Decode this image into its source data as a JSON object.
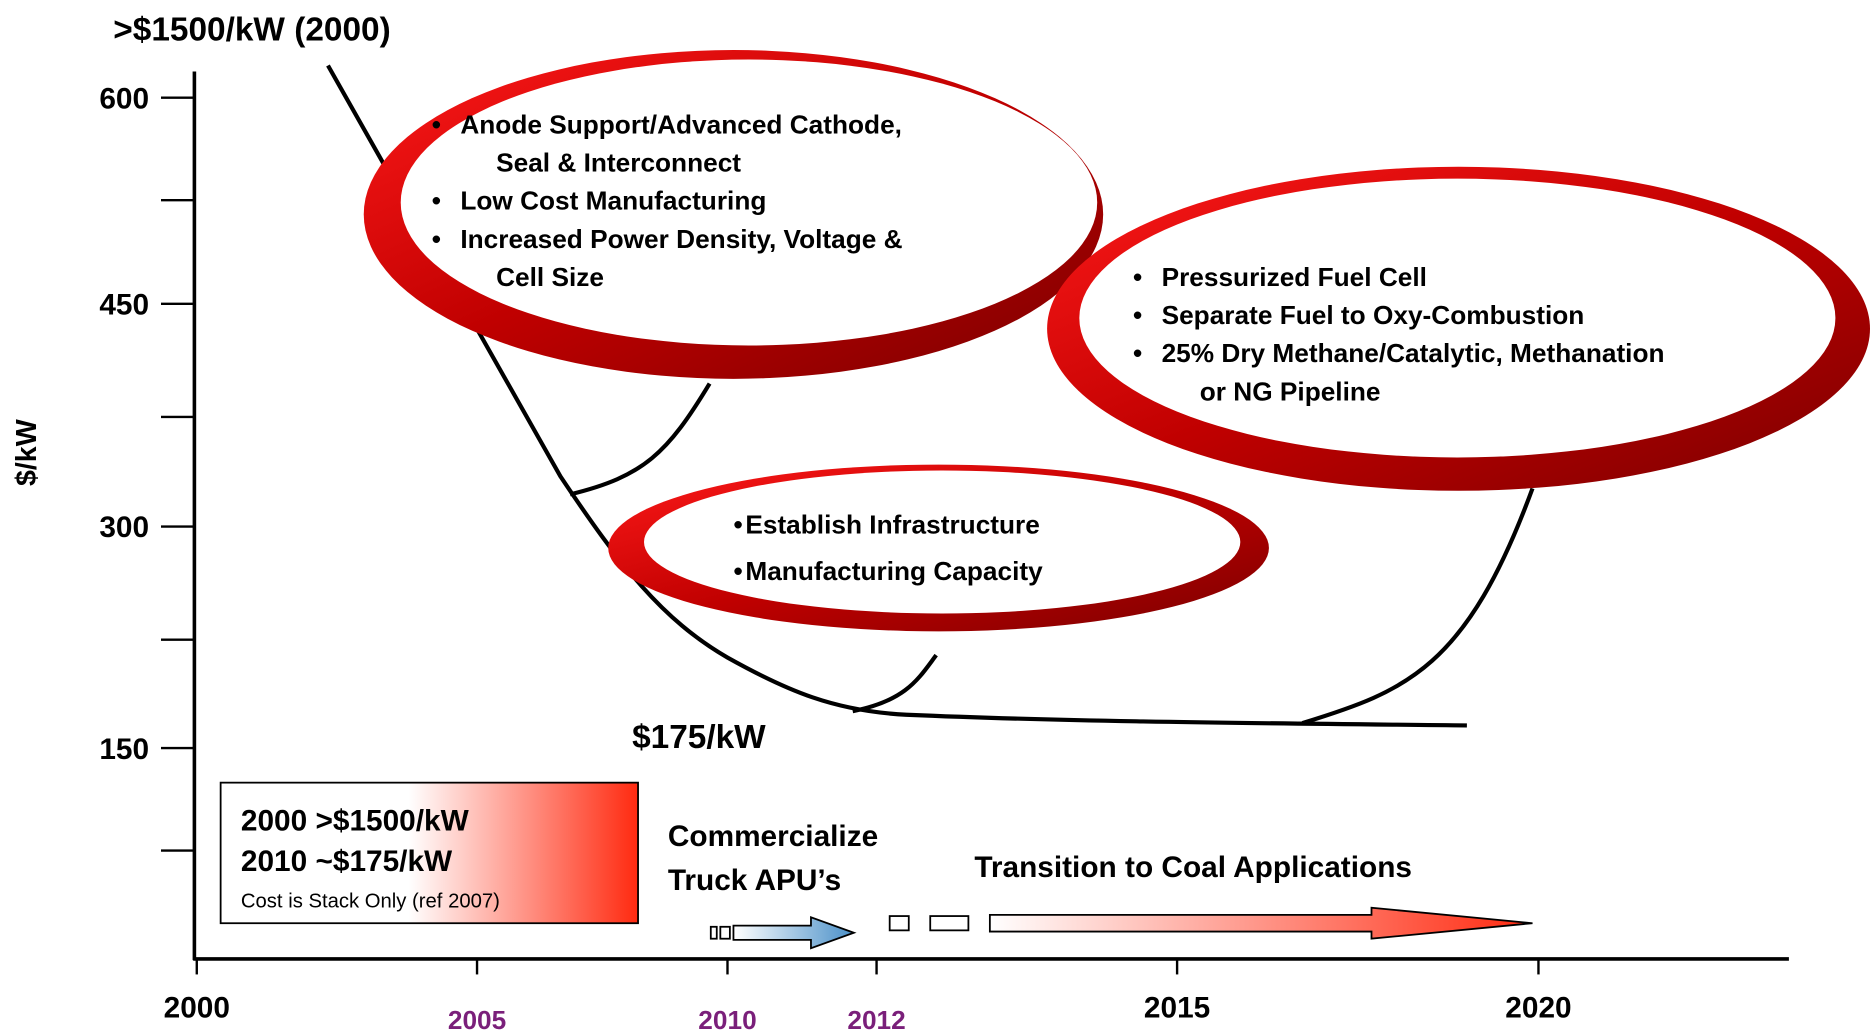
{
  "start_annotation": ">$1500/kW (2000)",
  "end_annotation": "$175/kW",
  "y_axis": {
    "label": "$/kW",
    "ticks": [
      "150",
      "300",
      "450",
      "600"
    ]
  },
  "x_axis": {
    "ticks": [
      {
        "label": "2000",
        "color": "#000000"
      },
      {
        "label": "2005",
        "color": "#7a1f7a"
      },
      {
        "label": "2010",
        "color": "#7a1f7a"
      },
      {
        "label": "2012",
        "color": "#7a1f7a"
      },
      {
        "label": "2015",
        "color": "#000000"
      },
      {
        "label": "2020",
        "color": "#000000"
      }
    ]
  },
  "callouts": [
    {
      "bullets": [
        [
          "Anode Support/Advanced Cathode,",
          "Seal & Interconnect"
        ],
        [
          "Low Cost Manufacturing"
        ],
        [
          "Increased Power Density, Voltage &",
          "Cell Size"
        ]
      ]
    },
    {
      "bullets": [
        [
          "Pressurized Fuel Cell"
        ],
        [
          "Separate Fuel to Oxy-Combustion"
        ],
        [
          "25% Dry Methane/Catalytic, Methanation",
          "or NG Pipeline"
        ]
      ]
    },
    {
      "bullets": [
        [
          "Establish Infrastructure"
        ],
        [
          "Manufacturing Capacity"
        ]
      ]
    }
  ],
  "summary_box": {
    "lines": [
      "2000 >$1500/kW",
      "2010 ~$175/kW"
    ],
    "note": "Cost is Stack Only (ref 2007)"
  },
  "milestones": [
    [
      "Commercialize",
      "Truck APU’s"
    ],
    [
      "Transition to Coal Applications"
    ]
  ]
}
